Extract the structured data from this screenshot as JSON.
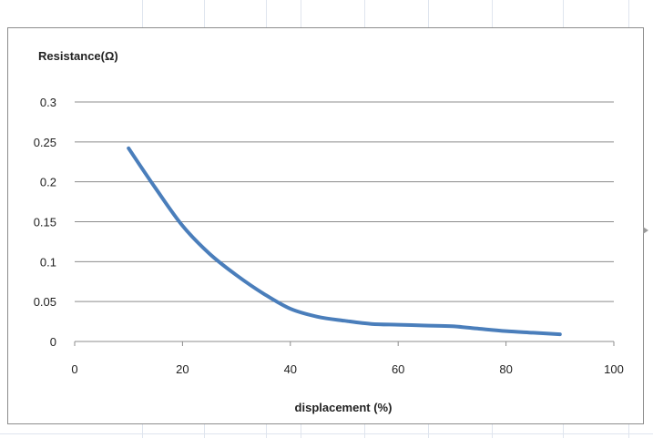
{
  "chart_data": {
    "type": "line",
    "title": "",
    "xlabel": "displacement (%)",
    "ylabel": "Resistance(Ω)",
    "xlim": [
      0,
      100
    ],
    "ylim": [
      0,
      0.3
    ],
    "xticks": [
      "0",
      "20",
      "40",
      "60",
      "80",
      "100"
    ],
    "yticks": [
      "0",
      "0.05",
      "0.1",
      "0.15",
      "0.2",
      "0.25",
      "0.3"
    ],
    "grid": "horizontal",
    "legend": "none",
    "series": [
      {
        "color": "#4a7ebb",
        "x": [
          10,
          15,
          20,
          25,
          30,
          35,
          40,
          45,
          50,
          55,
          60,
          65,
          70,
          75,
          80,
          85,
          90
        ],
        "y": [
          0.242,
          0.192,
          0.145,
          0.11,
          0.083,
          0.06,
          0.041,
          0.031,
          0.026,
          0.022,
          0.021,
          0.02,
          0.019,
          0.016,
          0.013,
          0.011,
          0.009
        ]
      }
    ]
  }
}
